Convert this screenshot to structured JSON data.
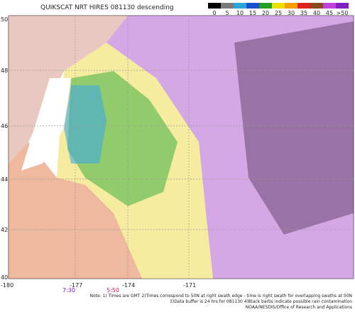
{
  "header": {
    "title": "QUIKSCAT NRT HIRES 081130 descending"
  },
  "legend": [
    {
      "label": "0",
      "color": "#000000"
    },
    {
      "label": "5",
      "color": "#7a7a7a"
    },
    {
      "label": "10",
      "color": "#2aa6d8"
    },
    {
      "label": "15",
      "color": "#1c4fd0"
    },
    {
      "label": "20",
      "color": "#22a022"
    },
    {
      "label": "25",
      "color": "#f0e000"
    },
    {
      "label": "30",
      "color": "#f5a000"
    },
    {
      "label": "35",
      "color": "#e02020"
    },
    {
      "label": "40",
      "color": "#8a4a20"
    },
    {
      "label": "45",
      "color": "#c040e0"
    },
    {
      "label": ">50",
      "color": "#8020c0"
    }
  ],
  "lat_labels": [
    "50",
    "48",
    "46",
    "44",
    "42",
    "40"
  ],
  "lon_labels": [
    "-180",
    "-177",
    "-174",
    "-171"
  ],
  "time_labels": [
    "7:30",
    "5:50"
  ],
  "notes": [
    "Note: 1) Times are GMT 2)Times correspond to 50N at right swath edge - time is right swath for overlapping swaths at 50N",
    "3)Data buffer is 24 hrs for 081130 4)Black barbs indicate possible rain contamination",
    "NOAA/NESDIS/Office of Research and Applications"
  ]
}
